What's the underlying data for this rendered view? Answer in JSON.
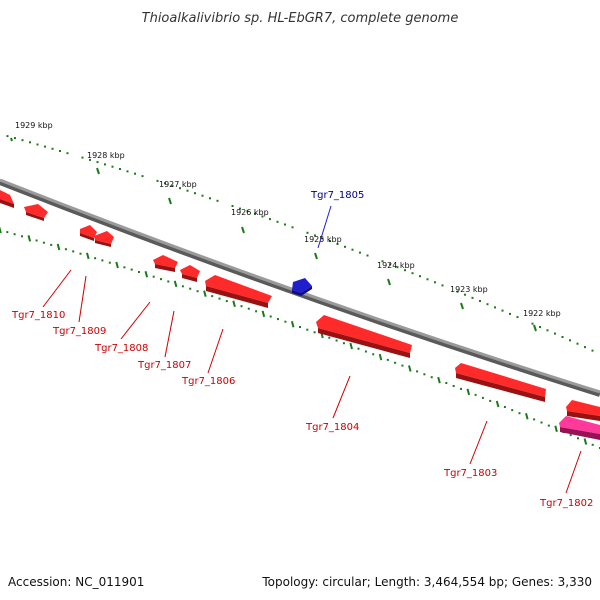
{
  "title": "Thioalkalivibrio sp. HL-EbGR7, complete genome",
  "footer": {
    "accession": "Accession: NC_011901",
    "summary": "Topology: circular; Length: 3,464,554 bp; Genes: 3,330"
  },
  "colors": {
    "background": "#ffffff",
    "backbone": "#8a8a8a",
    "ticks": "#1a7a1a",
    "forward_gene": "#1f1fcc",
    "reverse_gene": "#ee1111",
    "pink_gene": "#ee2299",
    "forward_label": "#000080",
    "reverse_label": "#cc0000"
  },
  "ticks": [
    {
      "label": "1929 kbp"
    },
    {
      "label": "1928 kbp"
    },
    {
      "label": "1927 kbp"
    },
    {
      "label": "1926 kbp"
    },
    {
      "label": "1925 kbp"
    },
    {
      "label": "1924 kbp"
    },
    {
      "label": "1923 kbp"
    },
    {
      "label": "1922 kbp"
    }
  ],
  "genes": [
    {
      "label": "Tgr7_1805",
      "strand": "forward"
    },
    {
      "label": "Tgr7_1810",
      "strand": "reverse"
    },
    {
      "label": "Tgr7_1809",
      "strand": "reverse"
    },
    {
      "label": "Tgr7_1808",
      "strand": "reverse"
    },
    {
      "label": "Tgr7_1807",
      "strand": "reverse"
    },
    {
      "label": "Tgr7_1806",
      "strand": "reverse"
    },
    {
      "label": "Tgr7_1804",
      "strand": "reverse"
    },
    {
      "label": "Tgr7_1803",
      "strand": "reverse"
    },
    {
      "label": "Tgr7_1802",
      "strand": "reverse"
    }
  ]
}
